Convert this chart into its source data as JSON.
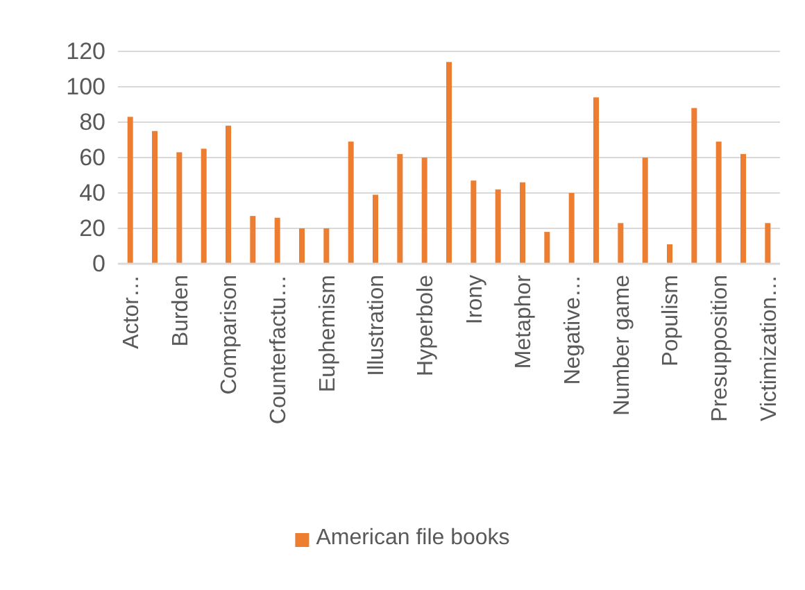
{
  "chart_data": {
    "type": "bar",
    "categories": [
      "Actor…",
      null,
      "Burden",
      null,
      "Comparison",
      null,
      "Counterfactu…",
      null,
      "Euphemism",
      null,
      "Illustration",
      null,
      "Hyperbole",
      null,
      "Irony",
      null,
      "Metaphor",
      null,
      "Negative…",
      null,
      "Number game",
      null,
      "Populism",
      null,
      "Presupposition",
      null,
      "Victimization…"
    ],
    "series": [
      {
        "name": "American file books",
        "color": "#ed7d31",
        "values": [
          83,
          75,
          63,
          65,
          78,
          27,
          26,
          20,
          20,
          69,
          39,
          62,
          60,
          114,
          47,
          42,
          46,
          18,
          40,
          94,
          23,
          60,
          11,
          88,
          69,
          62,
          23
        ]
      }
    ],
    "ylim": [
      0,
      120
    ],
    "yticks": [
      0,
      20,
      40,
      60,
      80,
      100,
      120
    ],
    "grid": "y",
    "legend": "bottom"
  }
}
